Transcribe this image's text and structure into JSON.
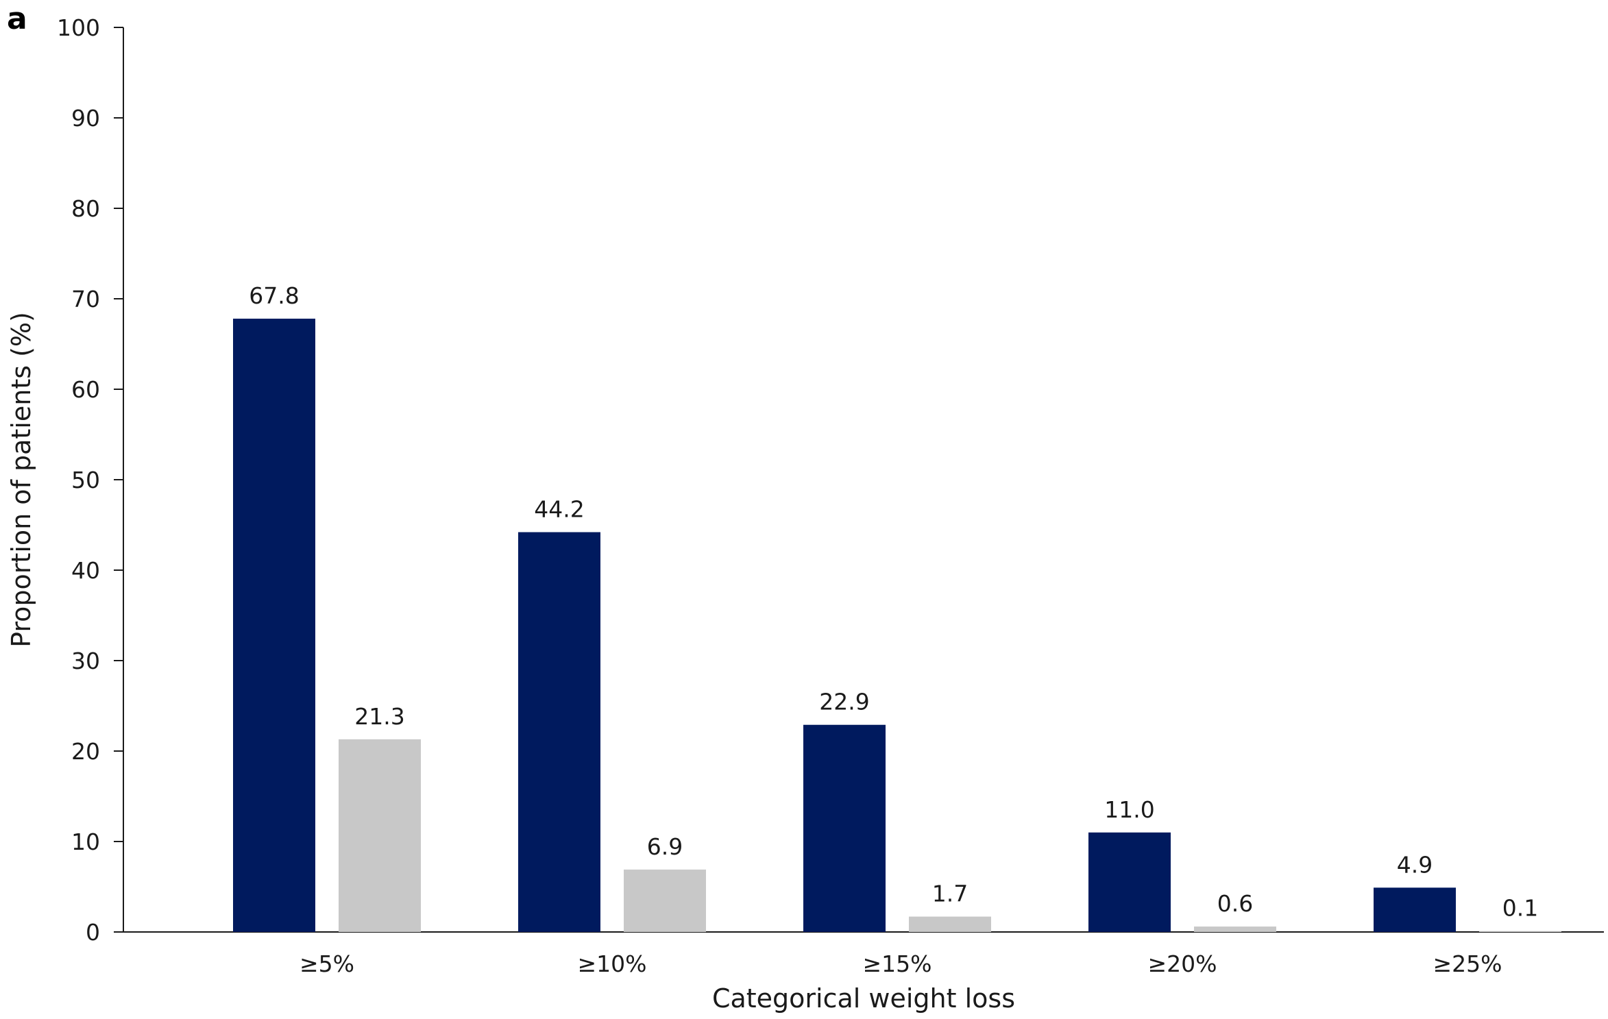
{
  "panel_label": "a",
  "colors": {
    "series_1": "#001a5e",
    "series_2": "#c8c8c8",
    "axis": "#1a1a1a"
  },
  "chart_data": {
    "type": "bar",
    "title": "",
    "xlabel": "Categorical weight loss",
    "ylabel": "Proportion of patients (%)",
    "ylim": [
      0,
      100
    ],
    "yticks": [
      0,
      10,
      20,
      30,
      40,
      50,
      60,
      70,
      80,
      90,
      100
    ],
    "grid": false,
    "legend": "none",
    "categories": [
      "≥5%",
      "≥10%",
      "≥15%",
      "≥20%",
      "≥25%"
    ],
    "series": [
      {
        "values": [
          67.8,
          44.2,
          22.9,
          11.0,
          4.9
        ],
        "labels": [
          "67.8",
          "44.2",
          "22.9",
          "11.0",
          "4.9"
        ],
        "color": "#001a5e"
      },
      {
        "values": [
          21.3,
          6.9,
          1.7,
          0.6,
          0.1
        ],
        "labels": [
          "21.3",
          "6.9",
          "1.7",
          "0.6",
          "0.1"
        ],
        "color": "#c8c8c8"
      }
    ]
  }
}
